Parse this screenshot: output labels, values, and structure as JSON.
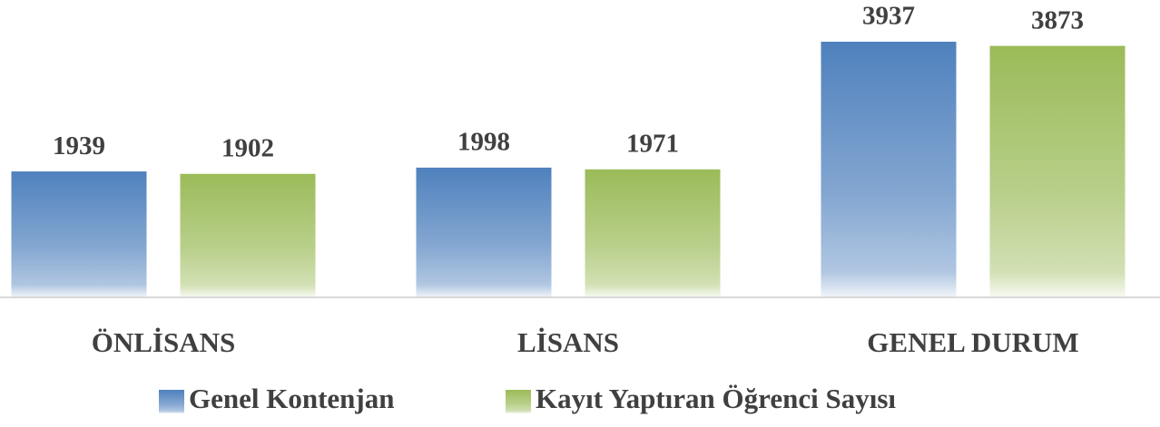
{
  "chart_data": {
    "type": "bar",
    "categories": [
      "ÖNLİSANS",
      "LİSANS",
      "GENEL DURUM"
    ],
    "series": [
      {
        "name": "Genel Kontenjan",
        "color": "#4f81bd",
        "values": [
          1939,
          1998,
          3937
        ]
      },
      {
        "name": "Kayıt Yaptıran Öğrenci Sayısı",
        "color": "#9bbb59",
        "values": [
          1902,
          1971,
          3873
        ]
      }
    ],
    "ylim": [
      0,
      4000
    ],
    "grid": false,
    "legend": "bottom"
  }
}
